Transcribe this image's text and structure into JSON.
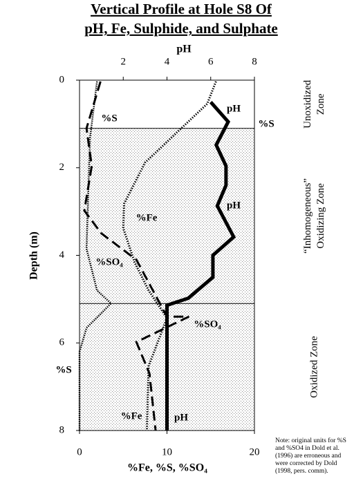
{
  "chart_data": {
    "type": "line",
    "title": [
      "Vertical Profile at Hole S8 Of",
      "pH, Fe, Sulphide, and Sulphate"
    ],
    "x2_label": "pH",
    "x_label": "%Fe, %S, %SO₄",
    "y_label": "Depth (m)",
    "ylim": [
      0,
      8
    ],
    "yticks": [
      0,
      2,
      4,
      6,
      8
    ],
    "xlim": [
      0,
      20
    ],
    "xticks": [
      0,
      10,
      20
    ],
    "x2lim": [
      0,
      8
    ],
    "x2ticks": [
      2,
      4,
      6,
      8
    ],
    "series": [
      {
        "name": "pH",
        "axis": "x2",
        "style": "solid",
        "color": "#000000",
        "values": [
          6.0,
          6.8,
          6.25,
          6.7,
          6.7,
          6.3,
          7.05,
          6.1,
          6.1,
          4.97,
          4.0,
          4.0
        ],
        "depth": [
          0.5,
          0.95,
          1.48,
          1.96,
          2.4,
          2.87,
          3.58,
          4.0,
          4.5,
          4.98,
          5.14,
          8.0
        ]
      },
      {
        "name": "%S",
        "axis": "x",
        "style": "dashed",
        "color": "#000000",
        "values": [
          2.4,
          0.8,
          1.4,
          0.55,
          2.5,
          6.5,
          10.0,
          12.5,
          6.5,
          8.0,
          8.7
        ],
        "depth": [
          0.03,
          1.1,
          1.96,
          2.98,
          3.5,
          4.1,
          5.4,
          5.4,
          5.98,
          6.7,
          8.0
        ]
      },
      {
        "name": "%Fe",
        "axis": "x",
        "style": "dotted",
        "color": "#000000",
        "values": [
          15.6,
          14.6,
          7.5,
          5.1,
          5.0,
          6.3,
          7.9,
          10.0,
          7.9,
          7.7
        ],
        "depth": [
          0.03,
          0.54,
          1.88,
          2.82,
          3.38,
          4.16,
          4.8,
          5.43,
          6.53,
          8.0
        ]
      },
      {
        "name": "%SO₄",
        "axis": "x",
        "style": "fine-dotted",
        "color": "#000000",
        "values": [
          2.0,
          1.2,
          0.95,
          0.8,
          2.0,
          3.6,
          0.8,
          0.0,
          0.0
        ],
        "depth": [
          0.03,
          1.32,
          2.9,
          3.85,
          4.8,
          5.1,
          5.66,
          6.2,
          8.0
        ]
      }
    ],
    "zones": [
      {
        "label": [
          "Unoxidized",
          "Zone"
        ],
        "from": 0,
        "to": 1.1,
        "shaded": false
      },
      {
        "label": [
          "“Inhomogeneous”",
          "Oxidizing Zone"
        ],
        "from": 1.1,
        "to": 5.1,
        "shaded": true
      },
      {
        "label": [
          "Oxidized Zone"
        ],
        "from": 5.1,
        "to": 8,
        "shaded": true
      }
    ],
    "annotations": [
      "%S",
      "pH",
      "%SO₄",
      "%S",
      "%Fe",
      "pH"
    ],
    "note": [
      "Note: original units for %S",
      "and %SO4 in Dold et al.",
      "(1996) are erroneous and",
      "were corrected by Dold",
      "(1998, pers. comm)."
    ]
  }
}
